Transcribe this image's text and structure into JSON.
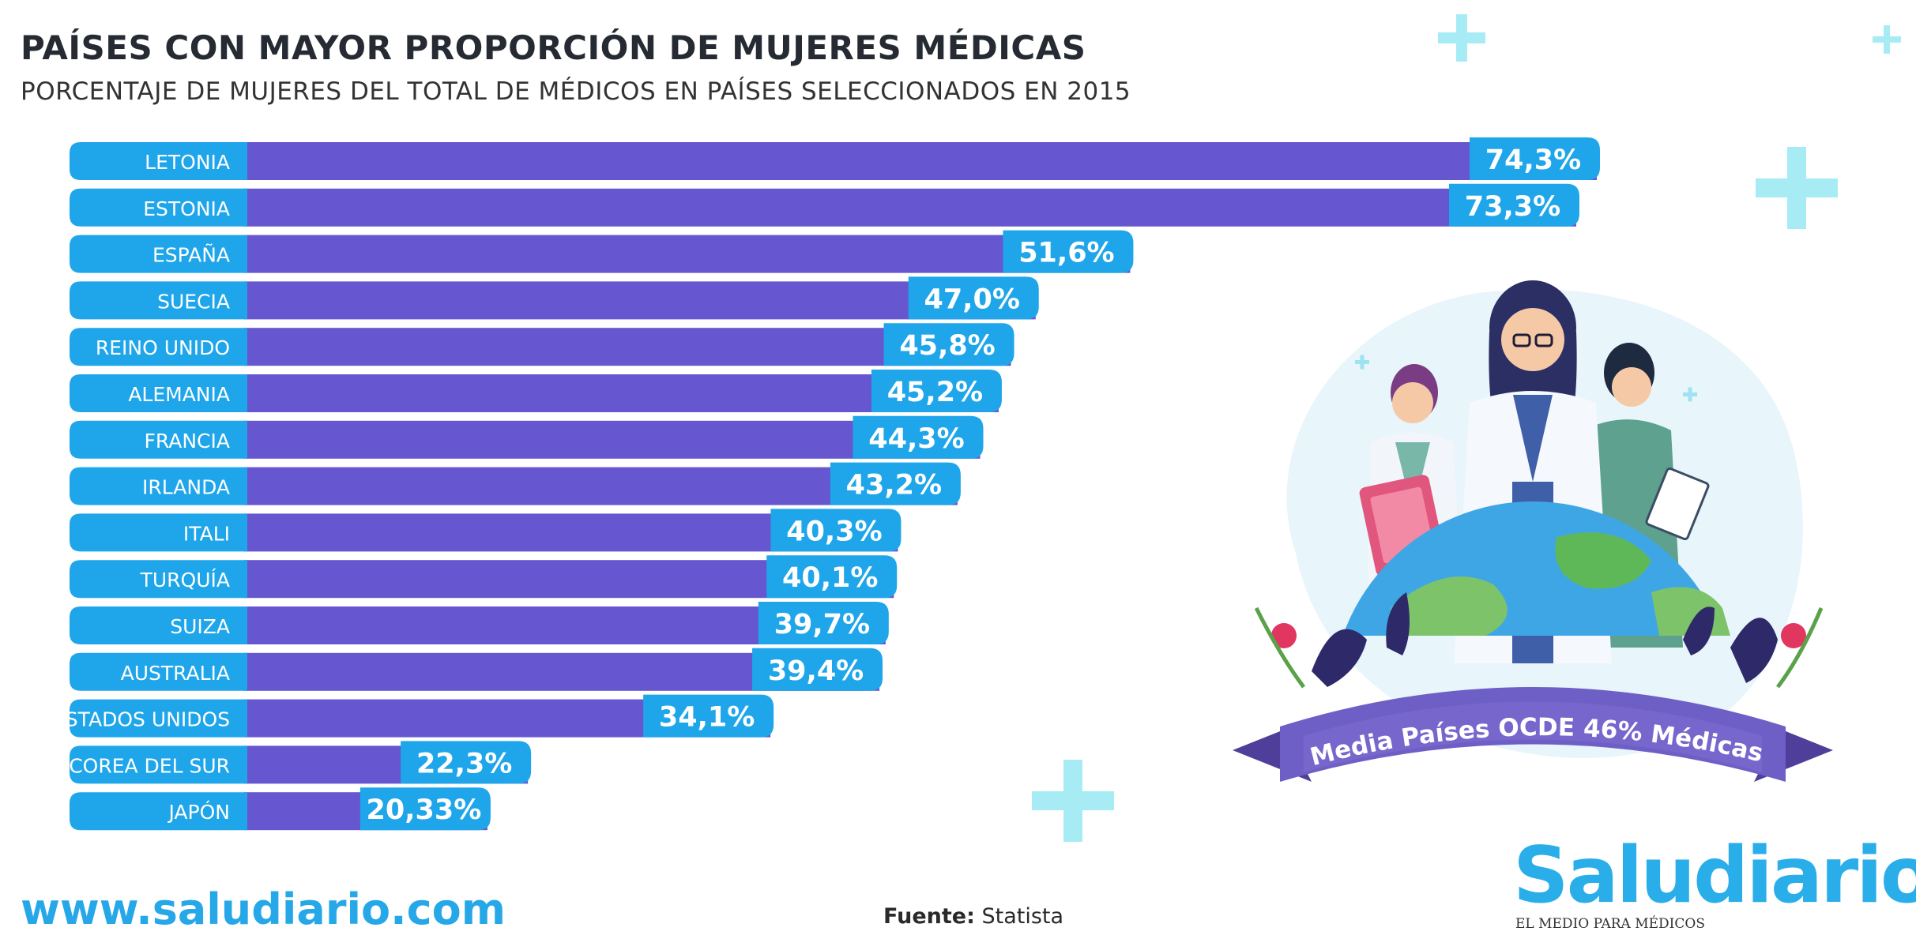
{
  "header": {
    "title": "PAÍSES CON MAYOR PROPORCIÓN DE MUJERES MÉDICAS",
    "subtitle": "PORCENTAJE DE MUJERES DEL TOTAL DE MÉDICOS EN PAÍSES SELECCIONADOS EN 2015"
  },
  "chart_data": {
    "type": "bar",
    "orientation": "horizontal",
    "categories": [
      "LETONIA",
      "ESTONIA",
      "ESPAÑA",
      "SUECIA",
      "REINO UNIDO",
      "ALEMANIA",
      "FRANCIA",
      "IRLANDA",
      "ITALI",
      "TURQUÍA",
      "SUIZA",
      "AUSTRALIA",
      "ESTADOS UNIDOS",
      "COREA DEL SUR",
      "JAPÓN"
    ],
    "values": [
      74.3,
      73.3,
      51.6,
      47.0,
      45.8,
      45.2,
      44.3,
      43.2,
      40.3,
      40.1,
      39.7,
      39.4,
      34.1,
      22.3,
      20.33
    ],
    "value_labels": [
      "74,3%",
      "73,3%",
      "51,6%",
      "47,0%",
      "45,8%",
      "45,2%",
      "44,3%",
      "43,2%",
      "40,3%",
      "40,1%",
      "39,7%",
      "39,4%",
      "34,1%",
      "22,3%",
      "20,33%"
    ],
    "title": "PAÍSES CON MAYOR PROPORCIÓN DE MUJERES MÉDICAS",
    "subtitle": "PORCENTAJE DE MUJERES DEL TOTAL DE MÉDICOS EN PAÍSES SELECCIONADOS EN 2015",
    "xlabel": "",
    "ylabel": "",
    "grid": false
  },
  "colors": {
    "bar": "#6657d0",
    "label_bg": "#1fa6ea",
    "label_text": "#ffffff",
    "accent_plus": "#a7ecf4",
    "brand": "#29aeea"
  },
  "illustration": {
    "banner_text": "Media Países OCDE 46% Médicas"
  },
  "footer": {
    "url": "www.saludiario.com",
    "source_label": "Fuente:",
    "source_value": "Statista",
    "logo": "Saludiario",
    "tagline": "EL MEDIO PARA MÉDICOS"
  }
}
